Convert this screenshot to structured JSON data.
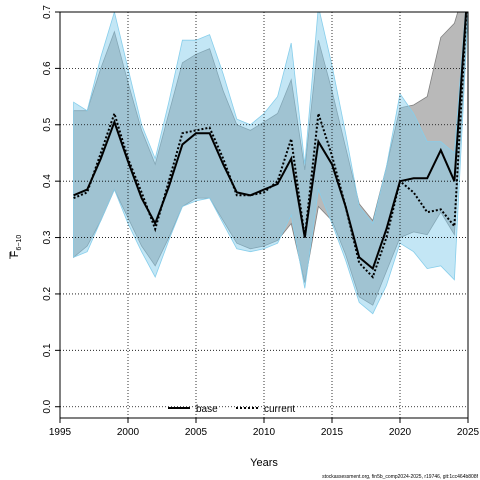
{
  "chart_data": {
    "type": "line",
    "xlabel": "Years",
    "ylabel_main": "F",
    "ylabel_sub": "6−10",
    "xlim": [
      1995,
      2025
    ],
    "ylim": [
      -0.02,
      0.7
    ],
    "x_ticks": [
      1995,
      2000,
      2005,
      2010,
      2015,
      2020,
      2025
    ],
    "y_ticks": [
      "0.0",
      "0.1",
      "0.2",
      "0.3",
      "0.4",
      "0.5",
      "0.6",
      "0.7"
    ],
    "grid": true,
    "legend_position": "bottom-center",
    "series": [
      {
        "name": "base",
        "line_style": "solid",
        "line_color": "#000000",
        "band_color": "#808080",
        "x": [
          1996,
          1997,
          1998,
          1999,
          2000,
          2001,
          2002,
          2003,
          2004,
          2005,
          2006,
          2007,
          2008,
          2009,
          2010,
          2011,
          2012,
          2013,
          2014,
          2015,
          2016,
          2017,
          2018,
          2019,
          2020,
          2021,
          2022,
          2023,
          2024,
          2025
        ],
        "values": [
          0.375,
          0.385,
          0.44,
          0.505,
          0.435,
          0.37,
          0.325,
          0.39,
          0.465,
          0.485,
          0.485,
          0.43,
          0.38,
          0.375,
          0.385,
          0.395,
          0.44,
          0.3,
          0.47,
          0.43,
          0.355,
          0.265,
          0.245,
          0.315,
          0.4,
          0.405,
          0.405,
          0.455,
          0.4,
          0.75
        ],
        "lower": [
          0.265,
          0.285,
          0.33,
          0.385,
          0.335,
          0.285,
          0.25,
          0.3,
          0.355,
          0.37,
          0.37,
          0.33,
          0.29,
          0.28,
          0.285,
          0.295,
          0.325,
          0.22,
          0.355,
          0.33,
          0.27,
          0.195,
          0.18,
          0.24,
          0.3,
          0.31,
          0.305,
          0.345,
          0.305,
          0.7
        ],
        "upper": [
          0.525,
          0.525,
          0.6,
          0.665,
          0.575,
          0.49,
          0.43,
          0.52,
          0.61,
          0.625,
          0.635,
          0.56,
          0.5,
          0.49,
          0.505,
          0.52,
          0.58,
          0.42,
          0.65,
          0.56,
          0.46,
          0.36,
          0.33,
          0.425,
          0.53,
          0.535,
          0.55,
          0.655,
          0.68,
          0.76
        ]
      },
      {
        "name": "current",
        "line_style": "dotted",
        "line_color": "#000000",
        "band_color": "#87ceeb",
        "x": [
          1996,
          1997,
          1998,
          1999,
          2000,
          2001,
          2002,
          2003,
          2004,
          2005,
          2006,
          2007,
          2008,
          2009,
          2010,
          2011,
          2012,
          2013,
          2014,
          2015,
          2016,
          2017,
          2018,
          2019,
          2020,
          2021,
          2022,
          2023,
          2024,
          2025
        ],
        "values": [
          0.37,
          0.38,
          0.45,
          0.52,
          0.44,
          0.38,
          0.315,
          0.4,
          0.485,
          0.49,
          0.495,
          0.44,
          0.375,
          0.375,
          0.38,
          0.4,
          0.475,
          0.3,
          0.52,
          0.445,
          0.355,
          0.255,
          0.23,
          0.3,
          0.4,
          0.38,
          0.345,
          0.35,
          0.32,
          0.75
        ],
        "lower": [
          0.265,
          0.275,
          0.33,
          0.385,
          0.325,
          0.275,
          0.23,
          0.295,
          0.355,
          0.365,
          0.37,
          0.325,
          0.28,
          0.275,
          0.28,
          0.29,
          0.34,
          0.21,
          0.385,
          0.325,
          0.26,
          0.185,
          0.165,
          0.215,
          0.29,
          0.275,
          0.245,
          0.25,
          0.225,
          0.7
        ],
        "upper": [
          0.54,
          0.525,
          0.62,
          0.7,
          0.6,
          0.5,
          0.44,
          0.54,
          0.65,
          0.65,
          0.66,
          0.59,
          0.51,
          0.5,
          0.52,
          0.55,
          0.645,
          0.43,
          0.71,
          0.605,
          0.485,
          0.355,
          0.325,
          0.425,
          0.555,
          0.52,
          0.47,
          0.47,
          0.45,
          0.76
        ]
      }
    ]
  },
  "footer": {
    "text": "stockassessment.org, fin5b_comp2024-2025, r19746, git:1cc464b808f"
  }
}
